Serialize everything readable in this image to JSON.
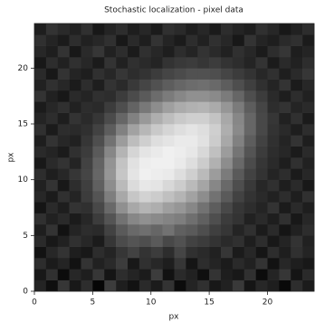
{
  "chart_data": {
    "type": "heatmap",
    "title": "Stochastic localization - pixel data",
    "x_label": "px",
    "y_label": "px",
    "xlim": [
      0,
      24
    ],
    "ylim": [
      0,
      24
    ],
    "xticks": [
      0,
      5,
      10,
      15,
      20
    ],
    "yticks": [
      0,
      5,
      10,
      15,
      20
    ],
    "cmap": "gray",
    "clim": [
      10,
      95
    ],
    "origin": "lower",
    "z": [
      [
        22,
        15,
        28,
        18,
        25,
        12,
        30,
        20,
        16,
        24,
        19,
        27,
        14,
        22,
        26,
        18,
        21,
        29,
        17,
        23,
        20,
        13,
        25,
        19
      ],
      [
        18,
        26,
        14,
        23,
        20,
        28,
        17,
        25,
        22,
        19,
        30,
        16,
        24,
        21,
        15,
        27,
        20,
        18,
        26,
        14,
        22,
        28,
        17,
        24
      ],
      [
        25,
        19,
        22,
        16,
        27,
        21,
        24,
        30,
        18,
        26,
        23,
        20,
        28,
        17,
        25,
        22,
        19,
        24,
        21,
        27,
        16,
        23,
        20,
        18
      ],
      [
        16,
        23,
        27,
        20,
        18,
        25,
        22,
        28,
        32,
        27,
        30,
        25,
        33,
        26,
        24,
        21,
        28,
        19,
        23,
        17,
        25,
        20,
        26,
        22
      ],
      [
        24,
        18,
        21,
        26,
        23,
        19,
        28,
        35,
        38,
        36,
        40,
        34,
        37,
        32,
        30,
        27,
        24,
        26,
        20,
        25,
        18,
        22,
        27,
        21
      ],
      [
        20,
        27,
        16,
        22,
        25,
        24,
        32,
        40,
        45,
        47,
        44,
        48,
        42,
        40,
        36,
        31,
        28,
        22,
        26,
        19,
        24,
        17,
        21,
        25
      ],
      [
        26,
        21,
        24,
        19,
        23,
        30,
        38,
        48,
        55,
        58,
        56,
        54,
        52,
        47,
        42,
        36,
        30,
        27,
        21,
        24,
        20,
        26,
        18,
        23
      ],
      [
        17,
        24,
        20,
        27,
        26,
        34,
        45,
        58,
        66,
        70,
        68,
        63,
        60,
        55,
        48,
        41,
        34,
        28,
        25,
        22,
        27,
        19,
        24,
        20
      ],
      [
        23,
        19,
        26,
        22,
        30,
        38,
        52,
        66,
        76,
        80,
        78,
        74,
        70,
        64,
        57,
        48,
        40,
        32,
        27,
        24,
        21,
        25,
        20,
        26
      ],
      [
        21,
        27,
        18,
        25,
        31,
        42,
        57,
        72,
        83,
        87,
        86,
        82,
        78,
        72,
        65,
        55,
        45,
        36,
        29,
        23,
        26,
        20,
        24,
        18
      ],
      [
        25,
        20,
        23,
        28,
        33,
        44,
        60,
        76,
        86,
        90,
        89,
        88,
        84,
        79,
        72,
        62,
        51,
        40,
        32,
        27,
        22,
        25,
        19,
        23
      ],
      [
        18,
        24,
        27,
        22,
        32,
        43,
        59,
        75,
        85,
        89,
        90,
        90,
        88,
        84,
        78,
        69,
        57,
        45,
        35,
        28,
        24,
        20,
        26,
        21
      ],
      [
        24,
        22,
        19,
        26,
        30,
        40,
        55,
        70,
        81,
        86,
        88,
        90,
        89,
        87,
        82,
        74,
        62,
        49,
        38,
        30,
        25,
        23,
        19,
        24
      ],
      [
        20,
        27,
        23,
        21,
        28,
        36,
        48,
        62,
        73,
        79,
        84,
        86,
        88,
        88,
        85,
        78,
        66,
        53,
        41,
        32,
        26,
        22,
        27,
        20
      ],
      [
        26,
        19,
        25,
        24,
        26,
        32,
        41,
        53,
        64,
        71,
        77,
        81,
        84,
        86,
        84,
        79,
        68,
        56,
        44,
        34,
        27,
        24,
        20,
        25
      ],
      [
        22,
        25,
        20,
        27,
        24,
        28,
        35,
        44,
        53,
        61,
        68,
        73,
        77,
        79,
        79,
        75,
        66,
        55,
        44,
        34,
        28,
        21,
        26,
        19
      ],
      [
        19,
        23,
        26,
        21,
        25,
        24,
        30,
        36,
        43,
        50,
        57,
        63,
        67,
        69,
        70,
        67,
        60,
        51,
        41,
        33,
        25,
        27,
        22,
        24
      ],
      [
        27,
        21,
        18,
        24,
        22,
        26,
        25,
        30,
        35,
        40,
        46,
        51,
        55,
        58,
        58,
        56,
        51,
        44,
        36,
        30,
        24,
        20,
        25,
        21
      ],
      [
        21,
        26,
        23,
        19,
        25,
        20,
        27,
        24,
        29,
        33,
        37,
        41,
        44,
        46,
        47,
        45,
        41,
        36,
        31,
        26,
        22,
        27,
        19,
        23
      ],
      [
        24,
        18,
        27,
        22,
        20,
        26,
        23,
        28,
        25,
        27,
        30,
        33,
        35,
        37,
        37,
        36,
        33,
        30,
        27,
        23,
        26,
        20,
        24,
        28
      ],
      [
        18,
        25,
        21,
        26,
        23,
        19,
        27,
        21,
        26,
        24,
        22,
        27,
        29,
        30,
        28,
        30,
        27,
        25,
        22,
        27,
        19,
        24,
        21,
        25
      ],
      [
        23,
        20,
        27,
        18,
        24,
        28,
        21,
        25,
        19,
        26,
        23,
        20,
        25,
        22,
        27,
        24,
        21,
        26,
        23,
        19,
        25,
        28,
        20,
        22
      ],
      [
        26,
        22,
        19,
        25,
        21,
        23,
        26,
        18,
        24,
        20,
        27,
        22,
        19,
        25,
        21,
        26,
        23,
        18,
        27,
        22,
        20,
        24,
        26,
        19
      ],
      [
        20,
        27,
        24,
        21,
        26,
        18,
        22,
        25,
        20,
        23,
        19,
        26,
        24,
        20,
        23,
        19,
        25,
        22,
        20,
        26,
        23,
        18,
        21,
        25
      ]
    ]
  }
}
